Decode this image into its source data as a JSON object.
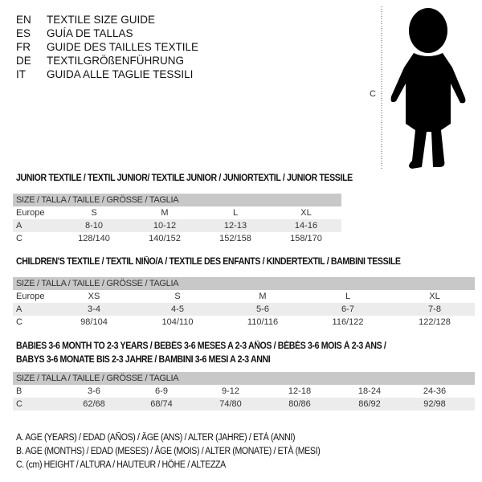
{
  "languages": [
    {
      "code": "EN",
      "label": "TEXTILE SIZE GUIDE"
    },
    {
      "code": "ES",
      "label": "GUÍA DE TALLAS"
    },
    {
      "code": "FR",
      "label": "GUIDE DES TAILLES TEXTILE"
    },
    {
      "code": "DE",
      "label": "TEXTILGRÖßENFÜHRUNG"
    },
    {
      "code": "IT",
      "label": "GUIDA ALLE TAGLIE TESSILI"
    }
  ],
  "figure": {
    "height_label": "C"
  },
  "junior": {
    "title": "JUNIOR TEXTILE / TEXTIL JUNIOR/ TEXTILE JUNIOR / JUNIORTEXTIL / JUNIOR TESSILE",
    "header": "SIZE / TALLA / TAILLE / GRÖSSE / TAGLIA",
    "rows": [
      {
        "label": "Europe",
        "values": [
          "S",
          "M",
          "L",
          "XL"
        ]
      },
      {
        "label": "A",
        "values": [
          "8-10",
          "10-12",
          "12-13",
          "14-16"
        ]
      },
      {
        "label": "C",
        "values": [
          "128/140",
          "140/152",
          "152/158",
          "158/170"
        ]
      }
    ]
  },
  "children": {
    "title": "CHILDREN'S TEXTILE / TEXTIL NIÑO/A / TEXTILE DES ENFANTS / KINDERTEXTIL / BAMBINI TESSILE",
    "header": "SIZE / TALLA / TAILLE / GRÖSSE / TAGLIA",
    "rows": [
      {
        "label": "Europe",
        "values": [
          "XS",
          "S",
          "M",
          "L",
          "XL"
        ]
      },
      {
        "label": "A",
        "values": [
          "3-4",
          "4-5",
          "5-6",
          "6-7",
          "7-8"
        ]
      },
      {
        "label": "C",
        "values": [
          "98/104",
          "104/110",
          "110/116",
          "116/122",
          "122/128"
        ]
      }
    ]
  },
  "babies": {
    "title_line1": "BABIES 3-6 MONTH TO 2-3 YEARS / BEBÉS 3-6 MESES A 2-3 AÑOS / BÉBÉS 3-6 MOIS À 2-3 ANS /",
    "title_line2": "BABYS 3-6 MONATE BIS 2-3 JAHRE / BAMBINI 3-6 MESI A 2-3 ANNI",
    "header": "SIZE / TALLA / TAILLE / GRÖSSE / TAGLIA",
    "rows": [
      {
        "label": "B",
        "values": [
          "3-6",
          "6-9",
          "9-12",
          "12-18",
          "18-24",
          "24-36"
        ]
      },
      {
        "label": "C",
        "values": [
          "62/68",
          "68/74",
          "74/80",
          "80/86",
          "86/92",
          "92/98"
        ]
      }
    ]
  },
  "legend": [
    "A. AGE (YEARS) / EDAD (AÑOS) / ÂGE (ANS) / ALTER (JAHRE) / ETÀ (ANNI)",
    "B. AGE (MONTHS) / EDAD (MESES) / ÂGE (MOIS) / ALTER (MONATE) / ETÀ (MESI)",
    "C. (cm) HEIGHT / ALTURA / HAUTEUR / HÖHE / ALTEZZA"
  ]
}
